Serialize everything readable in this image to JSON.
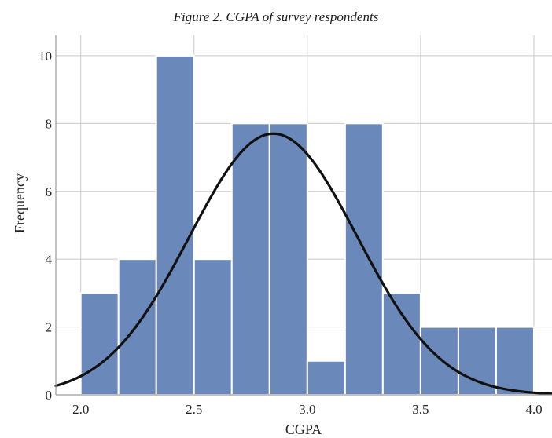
{
  "caption": "Figure 2. CGPA of survey respondents",
  "chart_data": {
    "type": "bar",
    "subtype": "histogram",
    "title": "Figure 2. CGPA of survey respondents",
    "xlabel": "CGPA",
    "ylabel": "Frequency",
    "xlim": [
      1.89,
      4.08
    ],
    "ylim": [
      0,
      10.6
    ],
    "x_ticks": [
      2.0,
      2.5,
      3.0,
      3.5,
      4.0
    ],
    "x_tick_labels": [
      "2.0",
      "2.5",
      "3.0",
      "3.5",
      "4.0"
    ],
    "y_ticks": [
      0,
      2,
      4,
      6,
      8,
      10
    ],
    "y_tick_labels": [
      "0",
      "2",
      "4",
      "6",
      "8",
      "10"
    ],
    "grid": true,
    "bins": [
      {
        "x0": 2.0,
        "x1": 2.1667,
        "value": 3
      },
      {
        "x0": 2.1667,
        "x1": 2.3333,
        "value": 4
      },
      {
        "x0": 2.3333,
        "x1": 2.5,
        "value": 10
      },
      {
        "x0": 2.5,
        "x1": 2.6667,
        "value": 4
      },
      {
        "x0": 2.6667,
        "x1": 2.8333,
        "value": 8
      },
      {
        "x0": 2.8333,
        "x1": 3.0,
        "value": 8
      },
      {
        "x0": 3.0,
        "x1": 3.1667,
        "value": 1
      },
      {
        "x0": 3.1667,
        "x1": 3.3333,
        "value": 8
      },
      {
        "x0": 3.3333,
        "x1": 3.5,
        "value": 3
      },
      {
        "x0": 3.5,
        "x1": 3.6667,
        "value": 2
      },
      {
        "x0": 3.6667,
        "x1": 3.8333,
        "value": 2
      },
      {
        "x0": 3.8333,
        "x1": 4.0,
        "value": 2
      }
    ],
    "normal_curve": {
      "mean": 2.85,
      "sd": 0.37,
      "peak": 7.7
    },
    "colors": {
      "bar_fill": "#6a88b9",
      "bar_edge": "#ffffff",
      "curve": "#111111",
      "grid": "#c9c9c9",
      "axis": "#9a9a9a"
    }
  }
}
